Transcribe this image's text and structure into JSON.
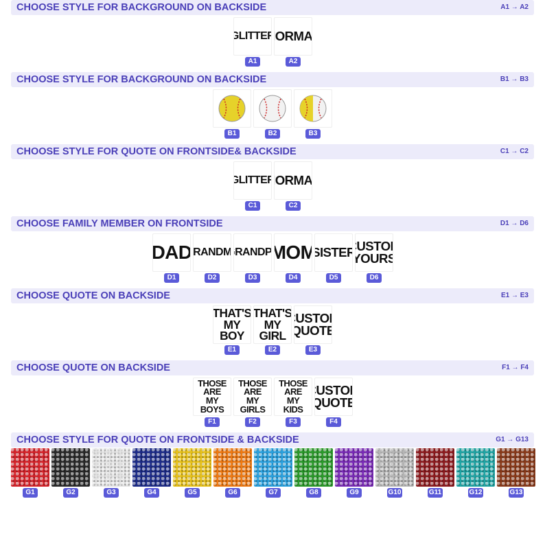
{
  "sections": [
    {
      "title": "CHOOSE STYLE FOR BACKGROUND ON BACKSIDE",
      "range": "A1 → A2",
      "options": [
        {
          "code": "A1",
          "text": [
            "GLITTER"
          ]
        },
        {
          "code": "A2",
          "text": [
            "NORMAL"
          ]
        }
      ]
    },
    {
      "title": "CHOOSE STYLE FOR BACKGROUND ON BACKSIDE",
      "range": "B1 → B3",
      "options": [
        {
          "code": "B1"
        },
        {
          "code": "B2"
        },
        {
          "code": "B3"
        }
      ]
    },
    {
      "title": "CHOOSE STYLE FOR QUOTE ON FRONTSIDE& BACKSIDE",
      "range": "C1 → C2",
      "options": [
        {
          "code": "C1",
          "text": [
            "GLITTER"
          ]
        },
        {
          "code": "C2",
          "text": [
            "NORMAL"
          ]
        }
      ]
    },
    {
      "title": "CHOOSE FAMILY MEMBER ON FRONTSIDE",
      "range": "D1 → D6",
      "options": [
        {
          "code": "D1",
          "text": [
            "DAD"
          ]
        },
        {
          "code": "D2",
          "text": [
            "GRANDMA"
          ]
        },
        {
          "code": "D3",
          "text": [
            "GRANDPA"
          ]
        },
        {
          "code": "D4",
          "text": [
            "MOM"
          ]
        },
        {
          "code": "D5",
          "text": [
            "SISTER"
          ]
        },
        {
          "code": "D6",
          "text": [
            "CUSTOM",
            "YOURS"
          ]
        }
      ]
    },
    {
      "title": "CHOOSE QUOTE ON BACKSIDE",
      "range": "E1 → E3",
      "options": [
        {
          "code": "E1",
          "text": [
            "THAT'S",
            "MY",
            "BOY"
          ]
        },
        {
          "code": "E2",
          "text": [
            "THAT'S",
            "MY",
            "GIRL"
          ]
        },
        {
          "code": "E3",
          "text": [
            "CUSTOM",
            "QUOTE"
          ]
        }
      ]
    },
    {
      "title": "CHOOSE QUOTE ON BACKSIDE",
      "range": "F1 → F4",
      "options": [
        {
          "code": "F1",
          "text": [
            "THOSE",
            "ARE",
            "MY",
            "BOYS"
          ]
        },
        {
          "code": "F2",
          "text": [
            "THOSE",
            "ARE",
            "MY",
            "GIRLS"
          ]
        },
        {
          "code": "F3",
          "text": [
            "THOSE",
            "ARE",
            "MY",
            "KIDS"
          ]
        },
        {
          "code": "F4",
          "text": [
            "CUSTOM",
            "QUOTE"
          ]
        }
      ]
    },
    {
      "title": "CHOOSE STYLE FOR QUOTE ON FRONTSIDE & BACKSIDE",
      "range": "G1 → G13",
      "options": [
        {
          "code": "G1",
          "color": "#d8232a"
        },
        {
          "code": "G2",
          "color": "#2a2a2a"
        },
        {
          "code": "G3",
          "color": "#e4e4e4"
        },
        {
          "code": "G4",
          "color": "#1d2c8a"
        },
        {
          "code": "G5",
          "color": "#e8c21a"
        },
        {
          "code": "G6",
          "color": "#f07a12"
        },
        {
          "code": "G7",
          "color": "#2aa2e0"
        },
        {
          "code": "G8",
          "color": "#2a9a2a"
        },
        {
          "code": "G9",
          "color": "#7a2ab8"
        },
        {
          "code": "G10",
          "color": "#b5b5b5"
        },
        {
          "code": "G11",
          "color": "#8e1a1e"
        },
        {
          "code": "G12",
          "color": "#1fa5a5"
        },
        {
          "code": "G13",
          "color": "#8a3a1a"
        }
      ]
    }
  ]
}
